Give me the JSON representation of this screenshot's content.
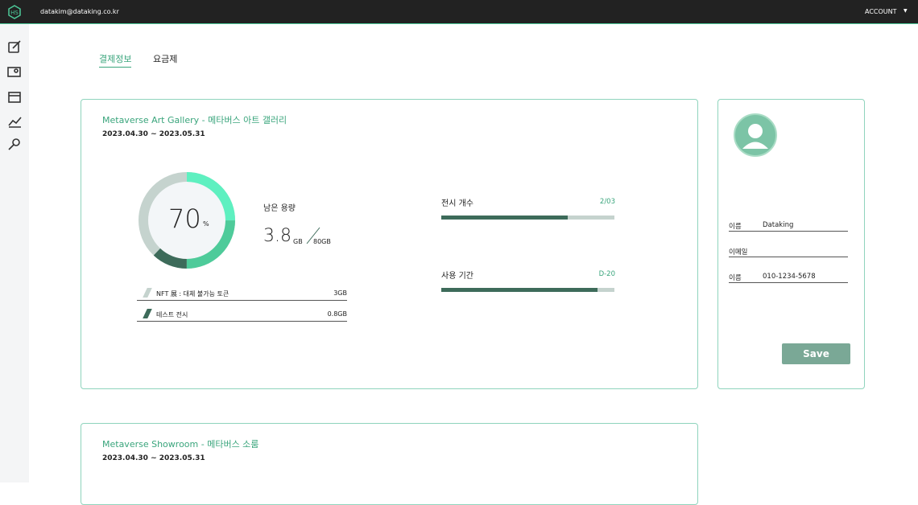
{
  "header": {
    "email": "datakim@dataking.co.kr",
    "account": "ACCOUNT"
  },
  "tabs": [
    "결제정보",
    "요금제"
  ],
  "galleries": [
    {
      "title": "Metaverse Art Gallery - 메타버스 아트 갤러리",
      "period": "2023.04.30 ~ 2023.05.31",
      "usage": {
        "percent": "70",
        "percent_unit": "%",
        "segments": [
          25,
          25,
          12
        ],
        "label": "남은 용량",
        "remaining": "3.8",
        "remaining_unit": "GB",
        "total": "80GB",
        "items": [
          {
            "name": "NFT 展 : 대체 불가능 토큰",
            "size": "3GB"
          },
          {
            "name": "테스트 전시",
            "size": "0.8GB"
          }
        ]
      },
      "meters": [
        {
          "label": "전시 개수",
          "value": "2/03",
          "fill": 73
        },
        {
          "label": "사용 기간",
          "value": "D-20",
          "fill": 90
        }
      ]
    },
    {
      "title": "Metaverse Showroom - 메타버스 소룸",
      "period": "2023.04.30 ~ 2023.05.31"
    }
  ],
  "profile": {
    "fields": [
      {
        "label": "이름",
        "value": "Dataking"
      },
      {
        "label": "이메일"
      },
      {
        "label": "이름",
        "value": "010-1234-5678"
      }
    ],
    "button": "Save"
  }
}
